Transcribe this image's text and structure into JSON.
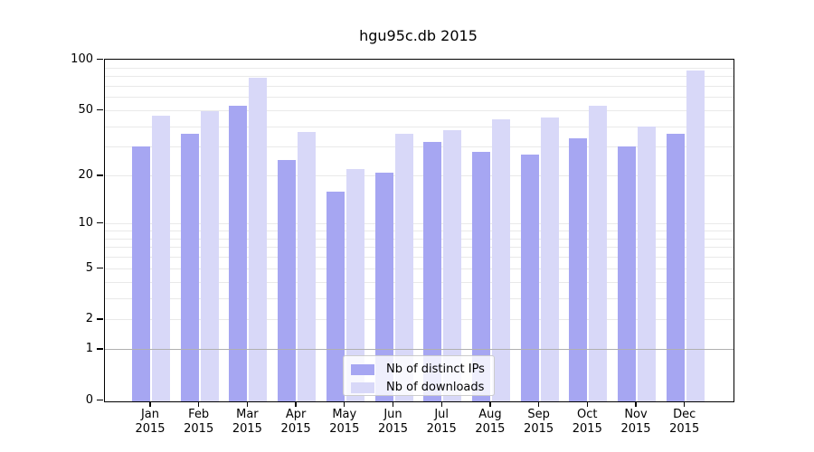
{
  "title": "hgu95c.db 2015",
  "chart_data": {
    "type": "bar",
    "title": "hgu95c.db 2015",
    "categories": [
      "Jan",
      "Feb",
      "Mar",
      "Apr",
      "May",
      "Jun",
      "Jul",
      "Aug",
      "Sep",
      "Oct",
      "Nov",
      "Dec"
    ],
    "category_year": "2015",
    "series": [
      {
        "name": "Nb of distinct IPs",
        "color": "#a6a6f2",
        "values": [
          30,
          36,
          53,
          25,
          16,
          21,
          32,
          28,
          27,
          34,
          30,
          36
        ]
      },
      {
        "name": "Nb of downloads",
        "color": "#d8d8f8",
        "values": [
          46,
          49,
          78,
          37,
          22,
          36,
          38,
          44,
          45,
          53,
          40,
          86
        ]
      }
    ],
    "xlabel": "",
    "ylabel": "",
    "yscale": "log1p",
    "ylim": [
      0,
      100
    ],
    "y_tick_values": [
      0,
      1,
      2,
      5,
      10,
      20,
      50,
      100
    ],
    "y_minor_gridline_values": [
      2,
      3,
      4,
      5,
      6,
      7,
      8,
      9,
      10,
      20,
      30,
      40,
      50,
      60,
      70,
      80,
      90
    ],
    "reference_line_value": 1,
    "grid": true,
    "legend_position": "lower-center-inside",
    "colors": {
      "gridline": "#e9e9e9",
      "reference_line": "#b0b0b0",
      "axis": "#000000",
      "legend_border": "#cccccc"
    }
  }
}
